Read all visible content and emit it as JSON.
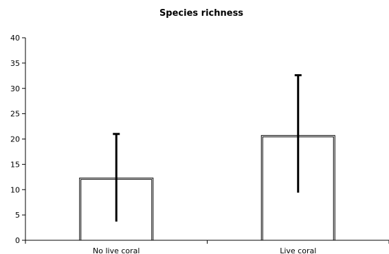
{
  "chart_data": {
    "type": "bar",
    "title": "Species richness",
    "xlabel": "",
    "ylabel": "",
    "categories": [
      "No live coral",
      "Live coral"
    ],
    "values": [
      12.3,
      20.7
    ],
    "error_low": [
      3.7,
      9.4
    ],
    "error_high": [
      21.0,
      32.6
    ],
    "ylim": [
      0,
      40
    ],
    "yticks": [
      0,
      5,
      10,
      15,
      20,
      25,
      30,
      35,
      40
    ],
    "grid": false,
    "legend": "none"
  }
}
